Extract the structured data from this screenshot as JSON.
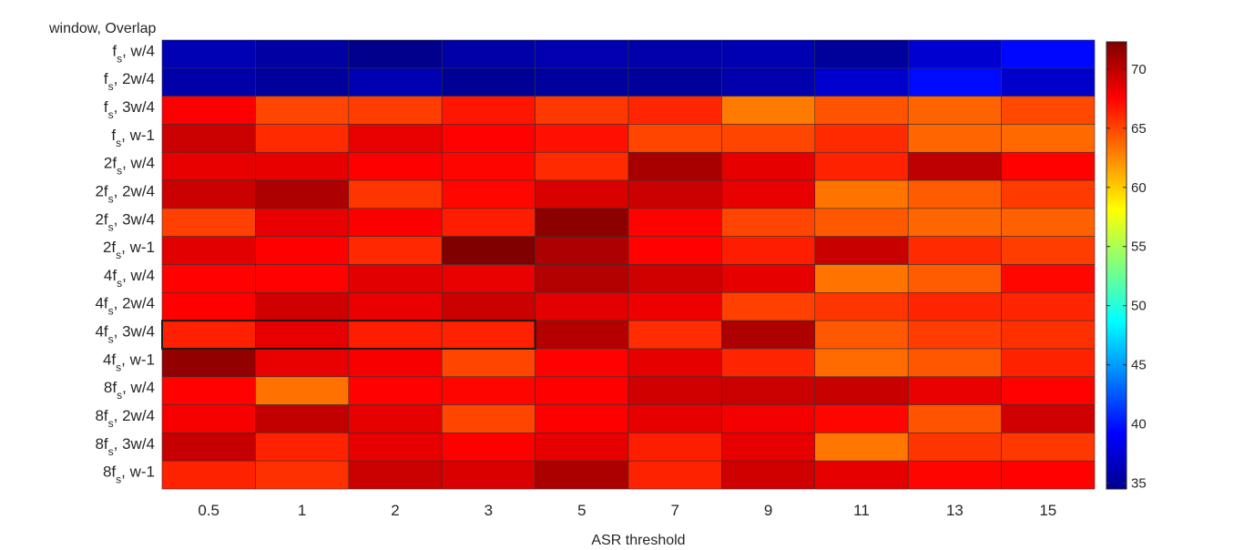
{
  "chart_data": {
    "type": "heatmap",
    "title": "",
    "xlabel": "ASR threshold",
    "ylabel": "window, Overlap",
    "x_categories": [
      "0.5",
      "1",
      "2",
      "3",
      "5",
      "7",
      "9",
      "11",
      "13",
      "15"
    ],
    "y_categories": [
      {
        "pre": "f",
        "post": ", w/4"
      },
      {
        "pre": "f",
        "post": ", 2w/4"
      },
      {
        "pre": "f",
        "post": ", 3w/4"
      },
      {
        "pre": "f",
        "post": ", w-1"
      },
      {
        "pre": "2f",
        "post": ", w/4"
      },
      {
        "pre": "2f",
        "post": ", 2w/4"
      },
      {
        "pre": "2f",
        "post": ", 3w/4"
      },
      {
        "pre": "2f",
        "post": ", w-1"
      },
      {
        "pre": "4f",
        "post": ", w/4"
      },
      {
        "pre": "4f",
        "post": ", 2w/4"
      },
      {
        "pre": "4f",
        "post": ", 3w/4"
      },
      {
        "pre": "4f",
        "post": ", w-1"
      },
      {
        "pre": "8f",
        "post": ", w/4"
      },
      {
        "pre": "8f",
        "post": ", 2w/4"
      },
      {
        "pre": "8f",
        "post": ", 3w/4"
      },
      {
        "pre": "8f",
        "post": ", w-1"
      }
    ],
    "y_subscript": "s",
    "values": [
      [
        36.5,
        35.8,
        35.0,
        36.0,
        36.3,
        36.1,
        36.4,
        35.5,
        37.5,
        39.5
      ],
      [
        36.0,
        35.6,
        36.4,
        35.3,
        35.6,
        35.5,
        36.2,
        37.4,
        39.6,
        37.3
      ],
      [
        67.7,
        65.0,
        65.3,
        66.8,
        65.5,
        66.2,
        63.0,
        64.5,
        63.9,
        64.9
      ],
      [
        69.5,
        66.0,
        68.4,
        67.5,
        67.0,
        65.0,
        65.0,
        66.0,
        63.8,
        63.7
      ],
      [
        68.5,
        68.5,
        67.6,
        67.4,
        66.0,
        70.8,
        68.5,
        66.3,
        70.0,
        67.5
      ],
      [
        69.5,
        70.6,
        65.6,
        67.3,
        69.0,
        69.5,
        68.4,
        63.3,
        64.2,
        65.4
      ],
      [
        65.2,
        68.4,
        67.7,
        66.5,
        71.8,
        67.5,
        65.0,
        64.3,
        63.8,
        64.0
      ],
      [
        68.6,
        67.6,
        66.1,
        72.3,
        70.6,
        67.5,
        66.5,
        69.6,
        66.0,
        65.3
      ],
      [
        67.5,
        67.5,
        68.6,
        68.4,
        70.4,
        69.4,
        68.5,
        63.3,
        64.2,
        67.3
      ],
      [
        67.6,
        69.3,
        68.3,
        69.5,
        68.6,
        68.2,
        65.2,
        65.6,
        66.2,
        66.2
      ],
      [
        66.4,
        68.5,
        66.5,
        66.3,
        70.3,
        65.9,
        70.6,
        64.3,
        65.3,
        65.8
      ],
      [
        71.6,
        68.4,
        67.8,
        65.0,
        67.5,
        68.5,
        66.2,
        63.6,
        64.4,
        66.3
      ],
      [
        67.5,
        63.4,
        67.5,
        67.4,
        67.6,
        69.3,
        69.5,
        69.6,
        68.4,
        67.5
      ],
      [
        67.8,
        69.8,
        68.5,
        65.0,
        67.6,
        68.5,
        68.0,
        67.4,
        64.5,
        69.3
      ],
      [
        69.7,
        66.3,
        68.5,
        67.6,
        68.5,
        66.5,
        68.5,
        63.2,
        65.6,
        65.5
      ],
      [
        66.3,
        65.8,
        69.5,
        68.9,
        70.7,
        66.3,
        69.4,
        68.5,
        67.4,
        67.5
      ]
    ],
    "colorbar": {
      "colormap": "jet",
      "range": [
        34.5,
        72.3
      ],
      "ticks": [
        35,
        40,
        45,
        50,
        55,
        60,
        65,
        70
      ]
    },
    "highlight_box": {
      "rows": [
        "4f, 3w/4"
      ],
      "cols": [
        "0.5",
        "1",
        "2",
        "3"
      ]
    },
    "grid": true
  }
}
